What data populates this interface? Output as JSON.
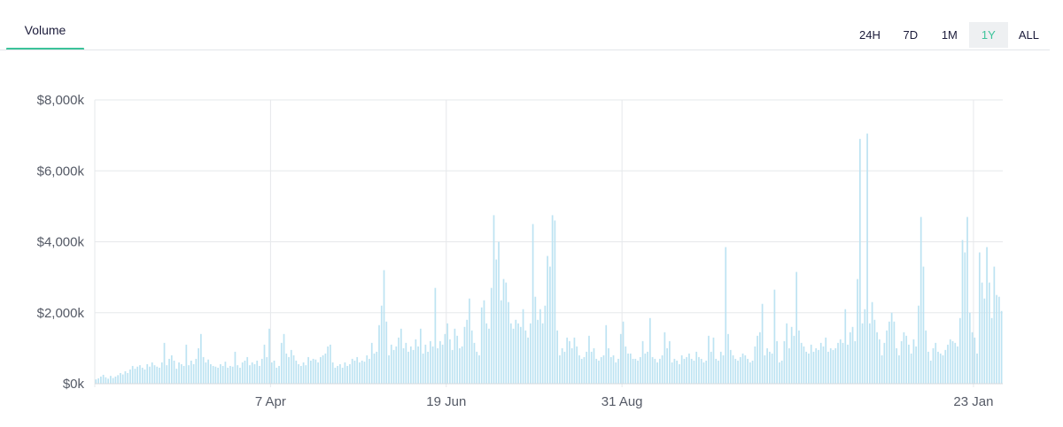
{
  "tabs": {
    "volume_label": "Volume"
  },
  "ranges": [
    {
      "label": "24H",
      "active": false
    },
    {
      "label": "7D",
      "active": false
    },
    {
      "label": "1M",
      "active": false
    },
    {
      "label": "1Y",
      "active": true
    },
    {
      "label": "ALL",
      "active": false
    }
  ],
  "colors": {
    "bar": "#bde3f2",
    "accent": "#3cc39a",
    "grid": "#e6e8eb"
  },
  "chart_data": {
    "type": "bar",
    "title": "",
    "xlabel": "",
    "ylabel": "",
    "ylim": [
      0,
      8000
    ],
    "y_ticks": [
      {
        "value": 0,
        "label": "$0k"
      },
      {
        "value": 2000,
        "label": "$2,000k"
      },
      {
        "value": 4000,
        "label": "$4,000k"
      },
      {
        "value": 6000,
        "label": "$6,000k"
      },
      {
        "value": 8000,
        "label": "$8,000k"
      }
    ],
    "x_ticks": [
      {
        "index": 0,
        "label": "",
        "grid": true
      },
      {
        "index": 72,
        "label": "7 Apr",
        "grid": true
      },
      {
        "index": 144,
        "label": "19 Jun",
        "grid": true
      },
      {
        "index": 216,
        "label": "31 Aug",
        "grid": true
      },
      {
        "index": 360,
        "label": "23 Jan",
        "grid": true
      }
    ],
    "grid": true,
    "legend": "none",
    "unit": "$k per day",
    "values": [
      120,
      150,
      200,
      250,
      180,
      140,
      220,
      160,
      200,
      240,
      300,
      260,
      350,
      300,
      400,
      500,
      420,
      480,
      520,
      450,
      400,
      550,
      480,
      600,
      520,
      480,
      450,
      600,
      1150,
      520,
      700,
      800,
      650,
      420,
      600,
      550,
      500,
      1100,
      520,
      650,
      550,
      700,
      1000,
      1400,
      750,
      600,
      680,
      550,
      500,
      480,
      450,
      550,
      500,
      620,
      450,
      500,
      480,
      900,
      520,
      450,
      600,
      650,
      750,
      520,
      600,
      550,
      650,
      500,
      700,
      1100,
      750,
      1550,
      600,
      650,
      450,
      500,
      1150,
      1400,
      850,
      750,
      950,
      800,
      650,
      550,
      500,
      600,
      520,
      750,
      650,
      700,
      680,
      600,
      750,
      800,
      850,
      1050,
      1100,
      600,
      450,
      500,
      550,
      450,
      600,
      500,
      550,
      700,
      650,
      750,
      600,
      650,
      620,
      800,
      700,
      1150,
      850,
      900,
      1650,
      2200,
      3200,
      1750,
      800,
      1100,
      950,
      1050,
      1300,
      1550,
      1000,
      1150,
      900,
      1050,
      950,
      1250,
      1050,
      1550,
      850,
      1100,
      900,
      1200,
      1050,
      2700,
      1000,
      1200,
      1100,
      1400,
      1700,
      1250,
      950,
      1550,
      1350,
      1000,
      1050,
      1600,
      1800,
      2400,
      1500,
      1150,
      900,
      800,
      2150,
      2350,
      1700,
      1550,
      2700,
      4750,
      3500,
      4000,
      2350,
      2950,
      2850,
      2300,
      1700,
      1550,
      1800,
      1700,
      1600,
      2100,
      1500,
      1300,
      1700,
      4500,
      2450,
      1800,
      2100,
      1700,
      2200,
      3600,
      3300,
      4750,
      4600,
      1500,
      800,
      1000,
      900,
      1300,
      1200,
      1000,
      1300,
      1050,
      800,
      700,
      750,
      900,
      1350,
      900,
      1000,
      700,
      650,
      750,
      800,
      1650,
      1000,
      750,
      800,
      600,
      700,
      1400,
      1750,
      1050,
      850,
      850,
      700,
      700,
      650,
      750,
      1200,
      850,
      900,
      1850,
      750,
      700,
      600,
      700,
      800,
      1450,
      1000,
      1200,
      600,
      700,
      650,
      550,
      800,
      700,
      750,
      850,
      700,
      650,
      900,
      750,
      700,
      600,
      650,
      1350,
      900,
      1300,
      700,
      650,
      900,
      800,
      3850,
      1400,
      950,
      800,
      700,
      650,
      750,
      850,
      800,
      700,
      600,
      650,
      1050,
      1350,
      1450,
      2250,
      800,
      1000,
      900,
      850,
      2650,
      1200,
      600,
      650,
      1200,
      1700,
      1000,
      1600,
      1350,
      3150,
      1500,
      1150,
      1050,
      900,
      850,
      1100,
      900,
      1000,
      950,
      1150,
      1050,
      1300,
      900,
      1000,
      950,
      1000,
      1150,
      1250,
      1150,
      2100,
      1100,
      1450,
      1600,
      1200,
      2950,
      6900,
      1700,
      2100,
      7050,
      1700,
      2300,
      1800,
      1450,
      1250,
      800,
      1150,
      1500,
      1750,
      2000,
      1750,
      1000,
      800,
      1200,
      1450,
      1350,
      1100,
      850,
      1250,
      1050,
      2200,
      4700,
      3300,
      1500,
      900,
      650,
      1000,
      1150,
      900,
      850,
      800,
      950,
      1100,
      1250,
      1200,
      1150,
      1050,
      1850,
      4050,
      3700,
      4700,
      2000,
      1450,
      1300,
      850,
      3700,
      2850,
      2400,
      3850,
      2850,
      1850,
      3300,
      2500,
      2450,
      2050
    ]
  }
}
